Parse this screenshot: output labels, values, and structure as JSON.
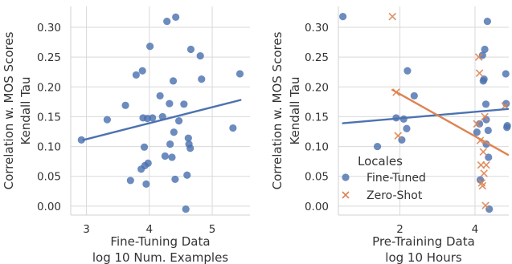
{
  "chart_data": [
    {
      "type": "scatter",
      "xlabel": [
        "Fine-Tuning Data",
        "log 10 Num. Examples"
      ],
      "ylabel": [
        "Correlation w. MOS Scores",
        "Kendall Tau"
      ],
      "xlim": [
        2.75,
        5.6
      ],
      "ylim": [
        -0.015,
        0.335
      ],
      "xticks": [
        "3",
        "4",
        "5"
      ],
      "xtick_values": [
        3,
        4,
        5
      ],
      "yticks": [
        "0.00",
        "0.05",
        "0.10",
        "0.15",
        "0.20",
        "0.25",
        "0.30"
      ],
      "ytick_values": [
        0.0,
        0.05,
        0.1,
        0.15,
        0.2,
        0.25,
        0.3
      ],
      "grid": true,
      "series": [
        {
          "marker": "circle",
          "color": "#4c72b0",
          "x": [
            2.92,
            3.33,
            3.62,
            3.7,
            3.79,
            3.87,
            3.89,
            3.9,
            3.92,
            3.93,
            3.95,
            3.97,
            3.98,
            4.01,
            4.05,
            4.17,
            4.21,
            4.25,
            4.28,
            4.32,
            4.33,
            4.36,
            4.38,
            4.39,
            4.41,
            4.42,
            4.47,
            4.55,
            4.58,
            4.6,
            4.62,
            4.63,
            4.65,
            4.66,
            4.81,
            4.83,
            5.33,
            5.44
          ],
          "y": [
            0.111,
            0.145,
            0.169,
            0.043,
            0.22,
            0.062,
            0.227,
            0.148,
            0.099,
            0.068,
            0.037,
            0.147,
            0.072,
            0.268,
            0.148,
            0.185,
            0.15,
            0.084,
            0.31,
            0.172,
            0.104,
            0.082,
            0.21,
            0.124,
            0.045,
            0.317,
            0.143,
            0.171,
            -0.005,
            0.052,
            0.114,
            0.104,
            0.097,
            0.263,
            0.252,
            0.213,
            0.131,
            0.222
          ]
        }
      ],
      "fit_lines": [
        {
          "color": "#4c72b0",
          "x": [
            2.95,
            5.45
          ],
          "y": [
            0.111,
            0.178
          ]
        }
      ]
    },
    {
      "type": "scatter",
      "xlabel": [
        "Pre-Training Data",
        "log 10 Hours"
      ],
      "ylabel": [
        "Correlation w. MOS Scores",
        "Kendall Tau"
      ],
      "xlim": [
        0.36,
        4.9
      ],
      "ylim": [
        -0.015,
        0.335
      ],
      "xticks": [
        "2",
        "4"
      ],
      "xtick_values": [
        2,
        4
      ],
      "yticks": [
        "0.00",
        "0.05",
        "0.10",
        "0.15",
        "0.20",
        "0.25",
        "0.30"
      ],
      "ytick_values": [
        0.0,
        0.05,
        0.1,
        0.15,
        0.2,
        0.25,
        0.3
      ],
      "grid": true,
      "legend": {
        "title": "Locales",
        "position": "lower-left",
        "entries": [
          "Fine-Tuned",
          "Zero-Shot"
        ]
      },
      "series": [
        {
          "name": "Fine-Tuned",
          "marker": "circle",
          "color": "#4c72b0",
          "x": [
            0.48,
            1.4,
            1.9,
            2.05,
            2.1,
            2.18,
            2.2,
            2.38,
            4.05,
            4.12,
            4.14,
            4.2,
            4.22,
            4.24,
            4.26,
            4.29,
            4.3,
            4.3,
            4.33,
            4.35,
            4.36,
            4.38,
            4.82,
            4.83,
            4.85,
            4.86
          ],
          "y": [
            0.318,
            0.1,
            0.148,
            0.111,
            0.146,
            0.13,
            0.227,
            0.185,
            0.124,
            0.138,
            0.044,
            0.253,
            0.21,
            0.213,
            0.263,
            0.171,
            0.145,
            0.104,
            0.31,
            0.127,
            0.082,
            -0.005,
            0.222,
            0.172,
            0.132,
            0.135
          ]
        },
        {
          "name": "Zero-Shot",
          "marker": "x",
          "color": "#dd8452",
          "x": [
            1.8,
            1.9,
            1.95,
            4.05,
            4.1,
            4.12,
            4.14,
            4.16,
            4.18,
            4.2,
            4.22,
            4.24,
            4.26,
            4.28,
            4.3,
            4.8
          ],
          "y": [
            0.318,
            0.191,
            0.118,
            0.138,
            0.25,
            0.223,
            0.11,
            0.069,
            0.039,
            0.034,
            0.091,
            0.055,
            0.15,
            0.001,
            0.069,
            0.168
          ]
        }
      ],
      "fit_lines": [
        {
          "series": "Fine-Tuned",
          "color": "#4c72b0",
          "x": [
            0.48,
            4.88
          ],
          "y": [
            0.139,
            0.163
          ]
        },
        {
          "series": "Zero-Shot",
          "color": "#dd8452",
          "x": [
            1.8,
            4.88
          ],
          "y": [
            0.195,
            0.086
          ]
        }
      ]
    }
  ]
}
